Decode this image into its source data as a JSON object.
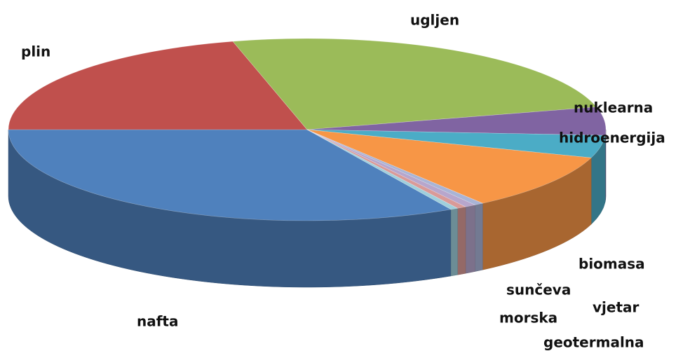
{
  "chart_data": {
    "type": "pie3d",
    "categories": [
      "nafta",
      "plin",
      "ugljen",
      "nuklearna",
      "hidroenergija",
      "biomasa",
      "sunčeva",
      "vjetar",
      "morska",
      "geotermalna"
    ],
    "values": [
      33,
      21,
      25,
      5,
      4,
      10,
      0.5,
      0.6,
      0.5,
      0.4
    ],
    "colors": [
      "#4f81bd",
      "#c0504d",
      "#9bbb59",
      "#8064a2",
      "#4bacc6",
      "#f79646",
      "#a9b4d6",
      "#b7a6cc",
      "#d99a98",
      "#9fcfdc"
    ]
  }
}
